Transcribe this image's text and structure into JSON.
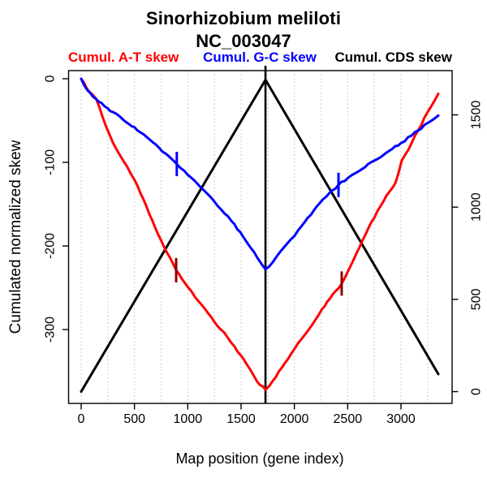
{
  "figure": {
    "title_line1": "Sinorhizobium meliloti",
    "title_line2": "NC_003047",
    "xlabel": "Map position (gene index)",
    "ylabel_left": "Cumulated normalized skew"
  },
  "chart_data": {
    "type": "line",
    "title": "Sinorhizobium meliloti NC_003047",
    "xlabel": "Map position (gene index)",
    "ylabel_left": "Cumulated normalized skew",
    "x_ticks": [
      0,
      500,
      1000,
      1500,
      2000,
      2500,
      3000
    ],
    "y_left_ticks": [
      0,
      -100,
      -200,
      -300
    ],
    "y_right_ticks": [
      0,
      500,
      1000,
      1500
    ],
    "xlim": [
      -130,
      3480
    ],
    "ylim_left": [
      -388,
      10
    ],
    "ylim_right": [
      -66,
      1740
    ],
    "grid": "vertical-dotted",
    "gridlines_x": [
      0,
      250,
      500,
      750,
      1000,
      1250,
      1500,
      1750,
      2000,
      2250,
      2500,
      2750,
      3000,
      3250
    ],
    "vertical_line_x": 1729,
    "colors": {
      "at": "#ff0000",
      "gc": "#0000ff",
      "cds": "#000000",
      "marker_dark_red": "#8b0000",
      "gridline": "#c8c8c8"
    },
    "legend": [
      {
        "label": "Cumul. A-T skew",
        "color": "#ff0000",
        "align": "left"
      },
      {
        "label": "Cumul. G-C skew",
        "color": "#0000ff",
        "align": "center"
      },
      {
        "label": "Cumul. CDS skew",
        "color": "#000000",
        "align": "right"
      }
    ],
    "series": [
      {
        "name": "Cumul. CDS skew",
        "color": "#000000",
        "axis": "right",
        "noisy": false,
        "points": [
          [
            0,
            0
          ],
          [
            1729,
            1690
          ],
          [
            3350,
            95
          ]
        ]
      },
      {
        "name": "Cumul. A-T skew",
        "color": "#ff0000",
        "axis": "left",
        "noisy": true,
        "points": [
          [
            0,
            0
          ],
          [
            80,
            -16
          ],
          [
            140,
            -24
          ],
          [
            230,
            -56
          ],
          [
            300,
            -77
          ],
          [
            400,
            -99
          ],
          [
            500,
            -121
          ],
          [
            610,
            -152
          ],
          [
            725,
            -187
          ],
          [
            800,
            -207
          ],
          [
            891,
            -229
          ],
          [
            1000,
            -249
          ],
          [
            1100,
            -266
          ],
          [
            1250,
            -291
          ],
          [
            1371,
            -309
          ],
          [
            1470,
            -327
          ],
          [
            1550,
            -341
          ],
          [
            1650,
            -362
          ],
          [
            1729,
            -372
          ],
          [
            1800,
            -361
          ],
          [
            1880,
            -346
          ],
          [
            2002,
            -323
          ],
          [
            2100,
            -306
          ],
          [
            2200,
            -288
          ],
          [
            2284,
            -272
          ],
          [
            2360,
            -258
          ],
          [
            2444,
            -245
          ],
          [
            2550,
            -218
          ],
          [
            2665,
            -187
          ],
          [
            2780,
            -158
          ],
          [
            2893,
            -135
          ],
          [
            2950,
            -124
          ],
          [
            3007,
            -98
          ],
          [
            3100,
            -77
          ],
          [
            3160,
            -62
          ],
          [
            3250,
            -40
          ],
          [
            3350,
            -18
          ]
        ]
      },
      {
        "name": "Cumul. G-C skew",
        "color": "#0000ff",
        "axis": "left",
        "noisy": true,
        "points": [
          [
            0,
            0
          ],
          [
            60,
            -14
          ],
          [
            137,
            -24
          ],
          [
            220,
            -33
          ],
          [
            300,
            -40
          ],
          [
            394,
            -49
          ],
          [
            500,
            -58
          ],
          [
            645,
            -73
          ],
          [
            760,
            -87
          ],
          [
            897,
            -102
          ],
          [
            1000,
            -115
          ],
          [
            1155,
            -134
          ],
          [
            1280,
            -152
          ],
          [
            1409,
            -170
          ],
          [
            1520,
            -189
          ],
          [
            1620,
            -207
          ],
          [
            1729,
            -228
          ],
          [
            1800,
            -219
          ],
          [
            1900,
            -202
          ],
          [
            2002,
            -188
          ],
          [
            2100,
            -171
          ],
          [
            2208,
            -153
          ],
          [
            2300,
            -141
          ],
          [
            2414,
            -127
          ],
          [
            2500,
            -119
          ],
          [
            2600,
            -111
          ],
          [
            2750,
            -98
          ],
          [
            2893,
            -86
          ],
          [
            3000,
            -77
          ],
          [
            3100,
            -68
          ],
          [
            3160,
            -62
          ],
          [
            3250,
            -53
          ],
          [
            3350,
            -44
          ]
        ]
      }
    ],
    "curve_markers": [
      {
        "series": "Cumul. G-C skew",
        "x": 897,
        "y": -102,
        "color": "#0000ff"
      },
      {
        "series": "Cumul. G-C skew",
        "x": 2414,
        "y": -127,
        "color": "#0000ff"
      },
      {
        "series": "Cumul. A-T skew",
        "x": 891,
        "y": -229,
        "color": "#8b0000"
      },
      {
        "series": "Cumul. A-T skew",
        "x": 2444,
        "y": -245,
        "color": "#8b0000"
      }
    ]
  }
}
